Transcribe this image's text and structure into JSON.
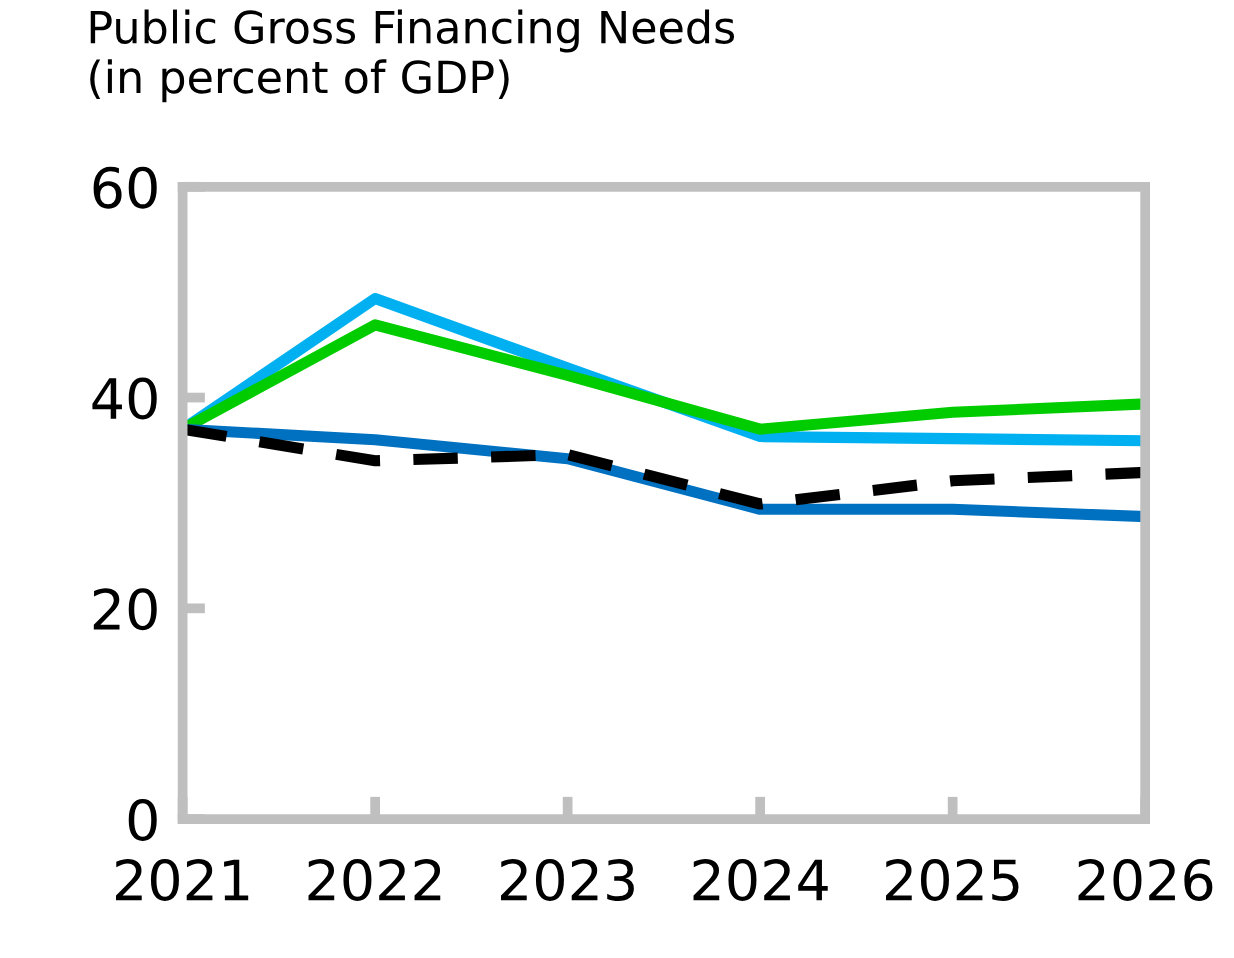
{
  "chart_data": {
    "type": "line",
    "title": "Public Gross Financing Needs\n(in percent of GDP)",
    "categories": [
      "2021",
      "2022",
      "2023",
      "2024",
      "2025",
      "2026"
    ],
    "series": [
      {
        "color": "#00b0f0",
        "values": [
          37.0,
          49.4,
          42.8,
          36.3,
          36.1,
          35.9
        ]
      },
      {
        "color": "#00cc00",
        "values": [
          37.0,
          46.9,
          42.1,
          37.0,
          38.6,
          39.4
        ]
      },
      {
        "color": "#0070c0",
        "values": [
          37.0,
          36.0,
          34.2,
          29.4,
          29.4,
          28.7
        ]
      },
      {
        "color": "#000000",
        "line_style": "dashed",
        "values": [
          37.0,
          34.0,
          34.6,
          29.9,
          32.1,
          32.9
        ]
      }
    ],
    "ylim": [
      0,
      60
    ],
    "yticks": [
      0,
      20,
      40,
      60
    ],
    "grid": false,
    "legend": false
  }
}
